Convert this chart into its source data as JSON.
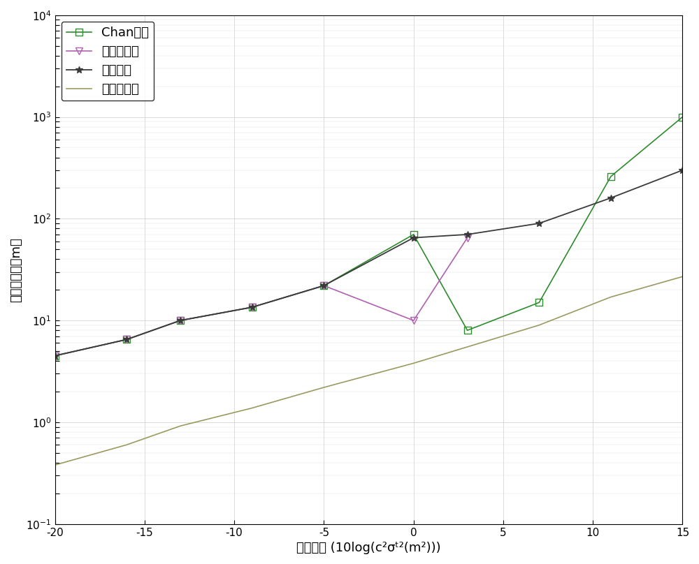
{
  "x_all": [
    -20,
    -16,
    -13,
    -9,
    -5,
    0,
    3,
    7,
    11,
    15
  ],
  "chan_y": [
    4.5,
    6.5,
    10.0,
    13.5,
    22.0,
    70.0,
    8.0,
    15.0,
    260.0,
    1000.0
  ],
  "taylor_x": [
    -20,
    -16,
    -13,
    -9,
    -5,
    0,
    3
  ],
  "taylor_y": [
    4.5,
    6.5,
    10.0,
    13.5,
    22.0,
    10.0,
    65.0
  ],
  "proposed_y": [
    4.5,
    6.5,
    10.0,
    13.5,
    22.0,
    65.0,
    70.0,
    90.0,
    160.0,
    300.0
  ],
  "cramer_y": [
    0.38,
    0.6,
    0.92,
    1.38,
    2.2,
    3.8,
    5.5,
    9.0,
    17.0,
    27.0
  ],
  "chan_color": "#2e8b2e",
  "taylor_color": "#b060b0",
  "proposed_color": "#3a3a3a",
  "cramer_color": "#9a9a60",
  "xlabel": "测量误差 (10log(c²σᵗ²(m²)))",
  "ylabel": "均方根误差（m）",
  "xlim": [
    -20,
    15
  ],
  "ylim_min": 0.1,
  "ylim_max": 10000,
  "legend_chan": "Chan算法",
  "legend_taylor": "泰勒级数法",
  "legend_proposed": "本文方法",
  "legend_cramer": "克拉美罗界",
  "xticks": [
    -20,
    -15,
    -10,
    -5,
    0,
    5,
    10,
    15
  ],
  "figsize": [
    10.0,
    8.08
  ],
  "dpi": 100
}
